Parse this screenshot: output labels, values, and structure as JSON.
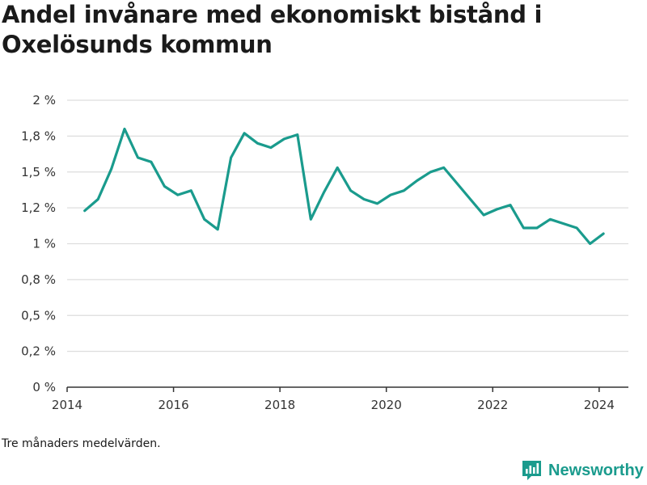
{
  "chart_data": {
    "type": "line",
    "title": "Andel invånare med ekonomiskt bistånd i Oxelösunds kommun",
    "footnote": "Tre månaders medelvärden.",
    "brand": "Newsworthy",
    "colors": {
      "line": "#1a9b8d",
      "grid": "#dddddd",
      "axis": "#333333",
      "text": "#333333"
    },
    "grid": true,
    "x_min": 2014,
    "x_max": 2024.55,
    "y_min": 0,
    "y_max": 2,
    "x_ticks": [
      {
        "value": 2014,
        "label": "2014"
      },
      {
        "value": 2016,
        "label": "2016"
      },
      {
        "value": 2018,
        "label": "2018"
      },
      {
        "value": 2020,
        "label": "2020"
      },
      {
        "value": 2022,
        "label": "2022"
      },
      {
        "value": 2024,
        "label": "2024"
      }
    ],
    "y_ticks": [
      {
        "value": 0,
        "label": "0 %"
      },
      {
        "value": 0.25,
        "label": "0,2 %"
      },
      {
        "value": 0.5,
        "label": "0,5 %"
      },
      {
        "value": 0.75,
        "label": "0,8 %"
      },
      {
        "value": 1,
        "label": "1 %"
      },
      {
        "value": 1.25,
        "label": "1,2 %"
      },
      {
        "value": 1.5,
        "label": "1,5 %"
      },
      {
        "value": 1.75,
        "label": "1,8 %"
      },
      {
        "value": 2,
        "label": "2 %"
      }
    ],
    "series": [
      {
        "x": [
          2014.33,
          2014.58,
          2014.83,
          2015.08,
          2015.33,
          2015.58,
          2015.83,
          2016.08,
          2016.33,
          2016.58,
          2016.83,
          2017.08,
          2017.33,
          2017.58,
          2017.83,
          2018.08,
          2018.33,
          2018.58,
          2018.83,
          2019.08,
          2019.33,
          2019.58,
          2019.83,
          2020.08,
          2020.33,
          2020.58,
          2020.83,
          2021.08,
          2021.33,
          2021.58,
          2021.83,
          2022.08,
          2022.33,
          2022.58,
          2022.83,
          2023.08,
          2023.33,
          2023.58,
          2023.83,
          2024.08
        ],
        "y": [
          1.23,
          1.31,
          1.52,
          1.8,
          1.6,
          1.57,
          1.4,
          1.34,
          1.37,
          1.17,
          1.1,
          1.6,
          1.77,
          1.7,
          1.67,
          1.73,
          1.76,
          1.17,
          1.36,
          1.53,
          1.37,
          1.31,
          1.28,
          1.34,
          1.37,
          1.44,
          1.5,
          1.53,
          1.42,
          1.31,
          1.2,
          1.24,
          1.27,
          1.11,
          1.11,
          1.17,
          1.14,
          1.11,
          1.0,
          1.07
        ]
      }
    ]
  }
}
